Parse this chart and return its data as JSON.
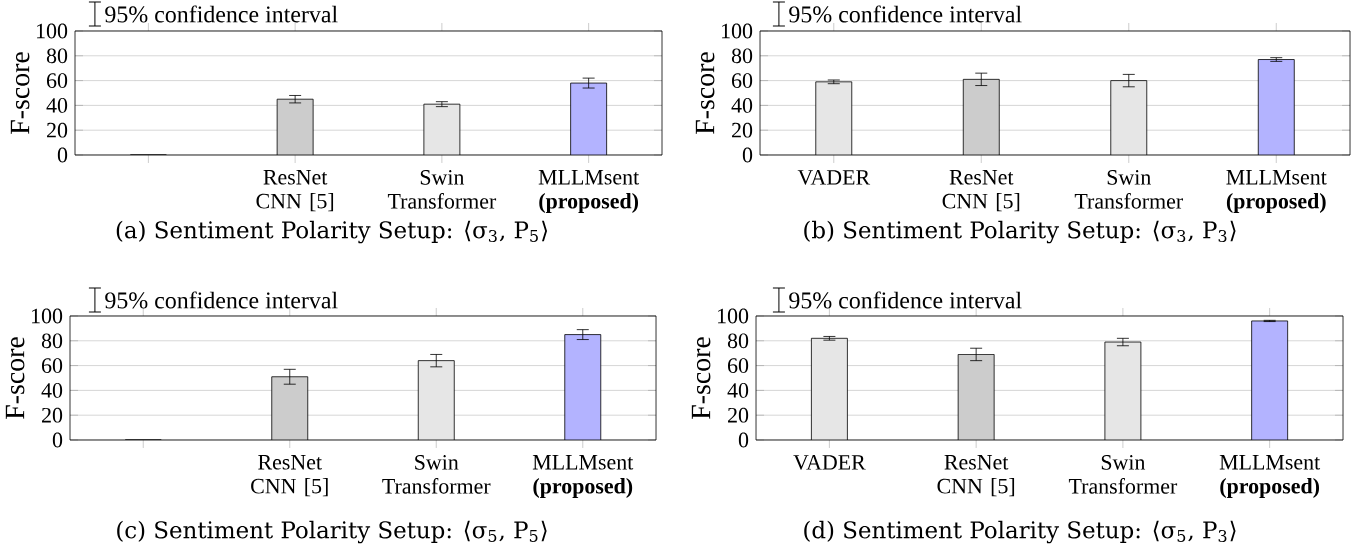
{
  "chart_data": [
    {
      "type": "bar",
      "title": "(a) Sentiment Polarity Setup: ⟨σ$_{3}$, P$_{5}$⟩",
      "ylabel": "F-score",
      "categories": [
        null,
        "ResNet CNN [5]",
        "Swin Transformer",
        "MLLMsent **(proposed)**"
      ],
      "values": [
        0,
        45,
        41,
        58
      ],
      "errors": [
        null,
        3,
        2,
        4
      ],
      "colors": [
        "#cccccc",
        "#cccccc",
        "#e6e6e6",
        "#b3b3ff"
      ],
      "ylim": [
        0,
        100
      ],
      "yticks": [
        0,
        20,
        40,
        60,
        80,
        100
      ],
      "grid": "y",
      "annotations": [
        "95% confidence interval"
      ]
    },
    {
      "type": "bar",
      "title": "(b) Sentiment Polarity Setup: ⟨σ$_{3}$, P$_{3}$⟩",
      "ylabel": "F-score",
      "categories": [
        "VADER",
        "ResNet CNN [5]",
        "Swin Transformer",
        "MLLMsent **(proposed)**"
      ],
      "values": [
        59,
        61,
        60,
        77
      ],
      "errors": [
        1.5,
        5,
        5,
        1.5
      ],
      "colors": [
        "#e6e6e6",
        "#cccccc",
        "#e6e6e6",
        "#b3b3ff"
      ],
      "ylim": [
        0,
        100
      ],
      "yticks": [
        0,
        20,
        40,
        60,
        80,
        100
      ],
      "grid": "y",
      "annotations": [
        "95% confidence interval"
      ]
    },
    {
      "type": "bar",
      "title": "(c) Sentiment Polarity Setup: ⟨σ$_{5}$, P$_{5}$⟩",
      "ylabel": "F-score",
      "categories": [
        null,
        "ResNet CNN [5]",
        "Swin Transformer",
        "MLLMsent **(proposed)**"
      ],
      "values": [
        0,
        51,
        64,
        85
      ],
      "errors": [
        null,
        6,
        5,
        4
      ],
      "colors": [
        "#cccccc",
        "#cccccc",
        "#e6e6e6",
        "#b3b3ff"
      ],
      "ylim": [
        0,
        100
      ],
      "yticks": [
        0,
        20,
        40,
        60,
        80,
        100
      ],
      "grid": "y",
      "annotations": [
        "95% confidence interval"
      ]
    },
    {
      "type": "bar",
      "title": "(d) Sentiment Polarity Setup: ⟨σ$_{5}$, P$_{3}$⟩",
      "ylabel": "F-score",
      "categories": [
        "VADER",
        "ResNet CNN [5]",
        "Swin Transformer",
        "MLLMsent **(proposed)**"
      ],
      "values": [
        82,
        69,
        79,
        96
      ],
      "errors": [
        1.5,
        5,
        3,
        0.5
      ],
      "colors": [
        "#e6e6e6",
        "#cccccc",
        "#e6e6e6",
        "#b3b3ff"
      ],
      "ylim": [
        0,
        100
      ],
      "yticks": [
        0,
        20,
        40,
        60,
        80,
        100
      ],
      "grid": "y",
      "annotations": [
        "95% confidence interval"
      ]
    }
  ]
}
